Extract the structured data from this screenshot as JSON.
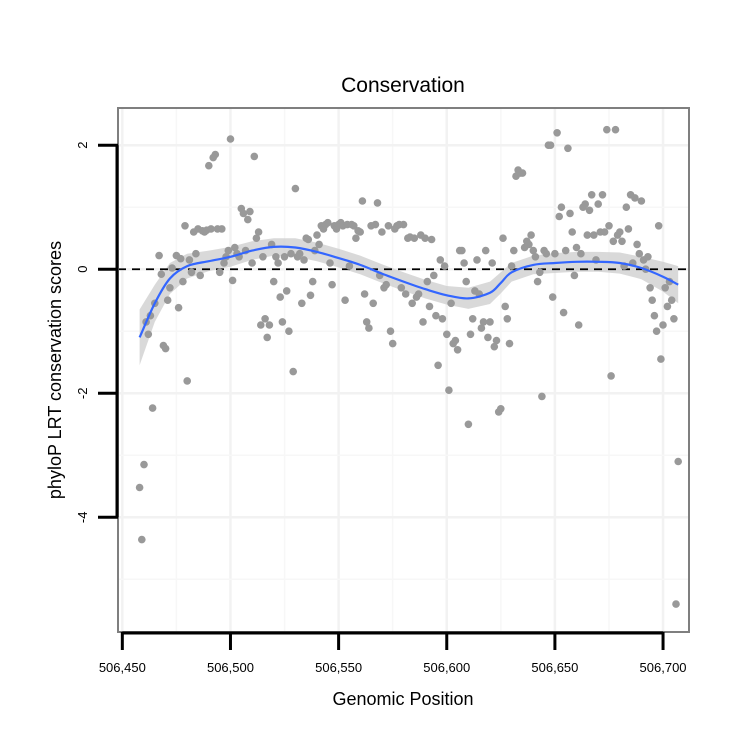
{
  "chart_data": {
    "type": "scatter",
    "title": "Conservation",
    "xlabel": "Genomic Position",
    "ylabel": "phyloP LRT conservation scores",
    "xlim": [
      506448,
      506712
    ],
    "ylim": [
      -5.85,
      2.6
    ],
    "x_ticks": [
      506450,
      506500,
      506550,
      506600,
      506650,
      506700
    ],
    "x_tick_labels": [
      "506,450",
      "506,500",
      "506,550",
      "506,600",
      "506,650",
      "506,700"
    ],
    "y_ticks": [
      -4,
      -2,
      0,
      2
    ],
    "y_tick_labels": [
      "-4",
      "-2",
      "0",
      "2"
    ],
    "grid": true,
    "reference_line": 0,
    "point_color": "#999999",
    "smooth_color": "#3366ff",
    "band_color": "#cccccc",
    "points": [
      [
        506458,
        -3.52
      ],
      [
        506459,
        -4.36
      ],
      [
        506460,
        -3.15
      ],
      [
        506461,
        -0.85
      ],
      [
        506462,
        -1.05
      ],
      [
        506463,
        -0.75
      ],
      [
        506464,
        -2.24
      ],
      [
        506465,
        -0.55
      ],
      [
        506467,
        0.22
      ],
      [
        506468,
        -0.08
      ],
      [
        506469,
        -1.23
      ],
      [
        506470,
        -1.28
      ],
      [
        506471,
        -0.5
      ],
      [
        506472,
        -0.3
      ],
      [
        506473,
        0.02
      ],
      [
        506475,
        0.22
      ],
      [
        506476,
        -0.62
      ],
      [
        506477,
        0.17
      ],
      [
        506478,
        -0.2
      ],
      [
        506479,
        0.7
      ],
      [
        506480,
        -1.8
      ],
      [
        506481,
        0.15
      ],
      [
        506482,
        -0.05
      ],
      [
        506483,
        0.6
      ],
      [
        506484,
        0.25
      ],
      [
        506485,
        0.65
      ],
      [
        506486,
        -0.1
      ],
      [
        506487,
        0.62
      ],
      [
        506488,
        0.6
      ],
      [
        506489,
        0.63
      ],
      [
        506490,
        1.67
      ],
      [
        506491,
        0.65
      ],
      [
        506492,
        1.8
      ],
      [
        506493,
        1.85
      ],
      [
        506494,
        0.65
      ],
      [
        506495,
        -0.05
      ],
      [
        506496,
        0.65
      ],
      [
        506497,
        0.1
      ],
      [
        506498,
        0.2
      ],
      [
        506499,
        0.3
      ],
      [
        506500,
        2.1
      ],
      [
        506501,
        -0.18
      ],
      [
        506502,
        0.35
      ],
      [
        506503,
        0.25
      ],
      [
        506504,
        0.2
      ],
      [
        506505,
        0.98
      ],
      [
        506506,
        0.9
      ],
      [
        506507,
        0.3
      ],
      [
        506508,
        0.8
      ],
      [
        506509,
        0.93
      ],
      [
        506510,
        0.1
      ],
      [
        506511,
        1.82
      ],
      [
        506512,
        0.5
      ],
      [
        506513,
        0.6
      ],
      [
        506514,
        -0.9
      ],
      [
        506515,
        0.2
      ],
      [
        506516,
        -0.8
      ],
      [
        506517,
        -1.1
      ],
      [
        506518,
        -0.9
      ],
      [
        506519,
        0.4
      ],
      [
        506520,
        -0.2
      ],
      [
        506521,
        0.2
      ],
      [
        506522,
        0.1
      ],
      [
        506523,
        -0.45
      ],
      [
        506524,
        -0.85
      ],
      [
        506525,
        0.2
      ],
      [
        506526,
        -0.35
      ],
      [
        506527,
        -1.0
      ],
      [
        506528,
        0.25
      ],
      [
        506529,
        -1.65
      ],
      [
        506530,
        1.3
      ],
      [
        506531,
        0.2
      ],
      [
        506532,
        0.25
      ],
      [
        506533,
        -0.55
      ],
      [
        506534,
        0.15
      ],
      [
        506535,
        0.5
      ],
      [
        506536,
        0.48
      ],
      [
        506537,
        -0.42
      ],
      [
        506538,
        -0.2
      ],
      [
        506539,
        0.3
      ],
      [
        506540,
        0.55
      ],
      [
        506541,
        0.4
      ],
      [
        506542,
        0.7
      ],
      [
        506543,
        0.65
      ],
      [
        506544,
        0.72
      ],
      [
        506545,
        0.75
      ],
      [
        506546,
        0.1
      ],
      [
        506547,
        -0.25
      ],
      [
        506548,
        0.7
      ],
      [
        506549,
        0.65
      ],
      [
        506550,
        0.72
      ],
      [
        506551,
        0.75
      ],
      [
        506552,
        0.7
      ],
      [
        506553,
        -0.5
      ],
      [
        506554,
        0.72
      ],
      [
        506555,
        0.05
      ],
      [
        506556,
        0.72
      ],
      [
        506557,
        0.7
      ],
      [
        506558,
        0.5
      ],
      [
        506559,
        0.62
      ],
      [
        506560,
        0.6
      ],
      [
        506561,
        1.1
      ],
      [
        506562,
        -0.4
      ],
      [
        506563,
        -0.85
      ],
      [
        506564,
        -0.95
      ],
      [
        506565,
        0.7
      ],
      [
        506566,
        -0.55
      ],
      [
        506567,
        0.72
      ],
      [
        506568,
        1.07
      ],
      [
        506569,
        -0.1
      ],
      [
        506570,
        0.6
      ],
      [
        506571,
        -0.3
      ],
      [
        506572,
        -0.25
      ],
      [
        506573,
        0.7
      ],
      [
        506574,
        -1.0
      ],
      [
        506575,
        -1.2
      ],
      [
        506576,
        0.65
      ],
      [
        506577,
        0.7
      ],
      [
        506578,
        0.72
      ],
      [
        506579,
        -0.3
      ],
      [
        506580,
        0.72
      ],
      [
        506581,
        -0.4
      ],
      [
        506582,
        0.5
      ],
      [
        506583,
        0.52
      ],
      [
        506584,
        -0.55
      ],
      [
        506585,
        0.5
      ],
      [
        506586,
        -0.45
      ],
      [
        506587,
        -0.4
      ],
      [
        506588,
        0.55
      ],
      [
        506589,
        -0.85
      ],
      [
        506590,
        0.5
      ],
      [
        506591,
        -0.2
      ],
      [
        506592,
        -0.6
      ],
      [
        506593,
        0.48
      ],
      [
        506594,
        -0.1
      ],
      [
        506595,
        -0.75
      ],
      [
        506596,
        -1.55
      ],
      [
        506597,
        0.15
      ],
      [
        506598,
        -0.8
      ],
      [
        506599,
        0.05
      ],
      [
        506600,
        -1.05
      ],
      [
        506601,
        -1.95
      ],
      [
        506602,
        -0.55
      ],
      [
        506603,
        -1.2
      ],
      [
        506604,
        -1.15
      ],
      [
        506605,
        -1.3
      ],
      [
        506606,
        0.3
      ],
      [
        506607,
        0.3
      ],
      [
        506608,
        0.1
      ],
      [
        506609,
        -0.2
      ],
      [
        506610,
        -2.5
      ],
      [
        506611,
        -1.05
      ],
      [
        506612,
        -0.8
      ],
      [
        506613,
        -0.35
      ],
      [
        506614,
        0.15
      ],
      [
        506615,
        -0.4
      ],
      [
        506616,
        -0.95
      ],
      [
        506617,
        -0.85
      ],
      [
        506618,
        0.3
      ],
      [
        506619,
        -1.1
      ],
      [
        506620,
        -0.85
      ],
      [
        506621,
        0.1
      ],
      [
        506622,
        -1.25
      ],
      [
        506623,
        -1.15
      ],
      [
        506624,
        -2.3
      ],
      [
        506625,
        -2.25
      ],
      [
        506626,
        0.5
      ],
      [
        506627,
        -0.6
      ],
      [
        506628,
        -0.8
      ],
      [
        506629,
        -1.2
      ],
      [
        506630,
        0.05
      ],
      [
        506631,
        0.3
      ],
      [
        506632,
        1.5
      ],
      [
        506633,
        1.6
      ],
      [
        506634,
        1.55
      ],
      [
        506635,
        1.55
      ],
      [
        506636,
        0.35
      ],
      [
        506637,
        0.45
      ],
      [
        506638,
        0.4
      ],
      [
        506639,
        0.55
      ],
      [
        506640,
        0.3
      ],
      [
        506641,
        0.2
      ],
      [
        506642,
        -0.2
      ],
      [
        506643,
        -0.05
      ],
      [
        506644,
        -2.05
      ],
      [
        506645,
        0.3
      ],
      [
        506646,
        0.25
      ],
      [
        506647,
        2.0
      ],
      [
        506648,
        2.0
      ],
      [
        506649,
        -0.45
      ],
      [
        506650,
        0.25
      ],
      [
        506651,
        2.2
      ],
      [
        506652,
        0.85
      ],
      [
        506653,
        1.0
      ],
      [
        506654,
        -0.7
      ],
      [
        506655,
        0.3
      ],
      [
        506656,
        1.95
      ],
      [
        506657,
        0.9
      ],
      [
        506658,
        0.6
      ],
      [
        506659,
        -0.1
      ],
      [
        506660,
        0.35
      ],
      [
        506661,
        -0.9
      ],
      [
        506662,
        0.25
      ],
      [
        506663,
        1.0
      ],
      [
        506664,
        1.05
      ],
      [
        506665,
        0.55
      ],
      [
        506666,
        0.95
      ],
      [
        506667,
        1.2
      ],
      [
        506668,
        0.55
      ],
      [
        506669,
        0.15
      ],
      [
        506670,
        1.05
      ],
      [
        506671,
        0.6
      ],
      [
        506672,
        1.2
      ],
      [
        506673,
        0.6
      ],
      [
        506674,
        2.25
      ],
      [
        506675,
        0.7
      ],
      [
        506676,
        -1.72
      ],
      [
        506677,
        0.45
      ],
      [
        506678,
        2.25
      ],
      [
        506679,
        0.55
      ],
      [
        506680,
        0.6
      ],
      [
        506681,
        0.45
      ],
      [
        506682,
        0.05
      ],
      [
        506683,
        1.0
      ],
      [
        506684,
        0.65
      ],
      [
        506685,
        1.2
      ],
      [
        506686,
        0.1
      ],
      [
        506687,
        1.15
      ],
      [
        506688,
        0.4
      ],
      [
        506689,
        0.25
      ],
      [
        506690,
        1.1
      ],
      [
        506691,
        0.15
      ],
      [
        506692,
        0.0
      ],
      [
        506693,
        0.2
      ],
      [
        506694,
        -0.3
      ],
      [
        506695,
        -0.5
      ],
      [
        506696,
        -0.75
      ],
      [
        506697,
        -1.0
      ],
      [
        506698,
        0.7
      ],
      [
        506699,
        -1.45
      ],
      [
        506700,
        -0.9
      ],
      [
        506701,
        -0.3
      ],
      [
        506702,
        -0.6
      ],
      [
        506703,
        -0.2
      ],
      [
        506704,
        -0.5
      ],
      [
        506705,
        -0.8
      ],
      [
        506706,
        -5.4
      ],
      [
        506707,
        -3.1
      ]
    ],
    "smooth": [
      [
        506458,
        -1.1
      ],
      [
        506465,
        -0.55
      ],
      [
        506472,
        -0.15
      ],
      [
        506480,
        0.05
      ],
      [
        506490,
        0.13
      ],
      [
        506500,
        0.2
      ],
      [
        506510,
        0.3
      ],
      [
        506520,
        0.36
      ],
      [
        506530,
        0.35
      ],
      [
        506540,
        0.28
      ],
      [
        506550,
        0.18
      ],
      [
        506560,
        0.07
      ],
      [
        506570,
        -0.07
      ],
      [
        506580,
        -0.2
      ],
      [
        506590,
        -0.32
      ],
      [
        506600,
        -0.42
      ],
      [
        506610,
        -0.47
      ],
      [
        506620,
        -0.38
      ],
      [
        506625,
        -0.22
      ],
      [
        506630,
        -0.05
      ],
      [
        506640,
        0.07
      ],
      [
        506650,
        0.1
      ],
      [
        506660,
        0.12
      ],
      [
        506670,
        0.12
      ],
      [
        506680,
        0.1
      ],
      [
        506690,
        0.02
      ],
      [
        506700,
        -0.12
      ],
      [
        506707,
        -0.25
      ]
    ],
    "band_upper": [
      [
        506458,
        -0.65
      ],
      [
        506465,
        -0.25
      ],
      [
        506472,
        0.1
      ],
      [
        506480,
        0.25
      ],
      [
        506490,
        0.3
      ],
      [
        506500,
        0.36
      ],
      [
        506510,
        0.45
      ],
      [
        506520,
        0.5
      ],
      [
        506530,
        0.5
      ],
      [
        506540,
        0.43
      ],
      [
        506550,
        0.33
      ],
      [
        506560,
        0.22
      ],
      [
        506570,
        0.08
      ],
      [
        506580,
        -0.05
      ],
      [
        506590,
        -0.17
      ],
      [
        506600,
        -0.27
      ],
      [
        506610,
        -0.3
      ],
      [
        506620,
        -0.2
      ],
      [
        506625,
        -0.05
      ],
      [
        506630,
        0.1
      ],
      [
        506640,
        0.22
      ],
      [
        506650,
        0.26
      ],
      [
        506660,
        0.28
      ],
      [
        506670,
        0.28
      ],
      [
        506680,
        0.27
      ],
      [
        506690,
        0.2
      ],
      [
        506700,
        0.12
      ],
      [
        506707,
        0.05
      ]
    ],
    "band_lower": [
      [
        506458,
        -1.55
      ],
      [
        506465,
        -0.85
      ],
      [
        506472,
        -0.4
      ],
      [
        506480,
        -0.15
      ],
      [
        506490,
        -0.03
      ],
      [
        506500,
        0.04
      ],
      [
        506510,
        0.15
      ],
      [
        506520,
        0.22
      ],
      [
        506530,
        0.2
      ],
      [
        506540,
        0.13
      ],
      [
        506550,
        0.03
      ],
      [
        506560,
        -0.08
      ],
      [
        506570,
        -0.22
      ],
      [
        506580,
        -0.35
      ],
      [
        506590,
        -0.47
      ],
      [
        506600,
        -0.57
      ],
      [
        506610,
        -0.64
      ],
      [
        506620,
        -0.56
      ],
      [
        506625,
        -0.39
      ],
      [
        506630,
        -0.2
      ],
      [
        506640,
        -0.08
      ],
      [
        506650,
        -0.06
      ],
      [
        506660,
        -0.04
      ],
      [
        506670,
        -0.04
      ],
      [
        506680,
        -0.07
      ],
      [
        506690,
        -0.16
      ],
      [
        506700,
        -0.36
      ],
      [
        506707,
        -0.55
      ]
    ]
  }
}
